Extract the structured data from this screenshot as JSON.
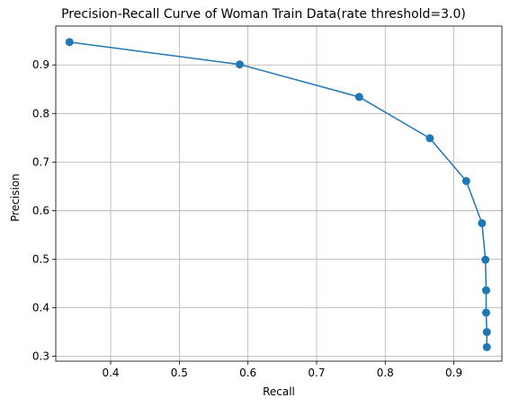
{
  "chart_data": {
    "type": "line",
    "title": "Precision-Recall Curve of Woman Train Data(rate threshold=3.0)",
    "xlabel": "Recall",
    "ylabel": "Precision",
    "xlim": [
      0.32,
      0.97
    ],
    "ylim": [
      0.29,
      0.98
    ],
    "xticks": [
      0.4,
      0.5,
      0.6,
      0.7,
      0.8,
      0.9
    ],
    "xtick_labels": [
      "0.4",
      "0.5",
      "0.6",
      "0.7",
      "0.8",
      "0.9"
    ],
    "yticks": [
      0.3,
      0.4,
      0.5,
      0.6,
      0.7,
      0.8,
      0.9
    ],
    "ytick_labels": [
      "0.3",
      "0.4",
      "0.5",
      "0.6",
      "0.7",
      "0.8",
      "0.9"
    ],
    "grid": true,
    "line_color": "#1f77b4",
    "marker": "circle",
    "series": [
      {
        "x": [
          0.34,
          0.588,
          0.762,
          0.865,
          0.918,
          0.941,
          0.946,
          0.947,
          0.947,
          0.948,
          0.948
        ],
        "y": [
          0.947,
          0.901,
          0.834,
          0.749,
          0.661,
          0.574,
          0.499,
          0.436,
          0.39,
          0.35,
          0.319
        ]
      }
    ]
  }
}
